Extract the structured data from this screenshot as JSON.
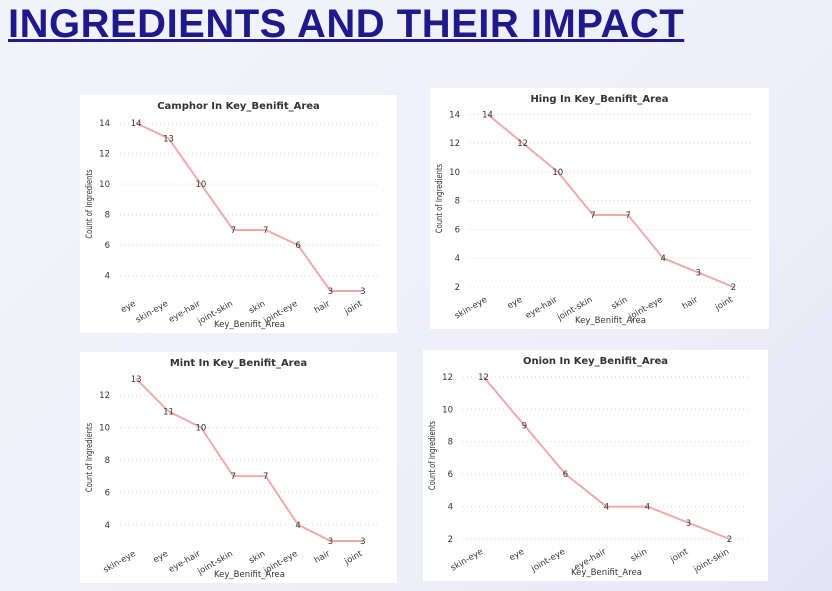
{
  "header": {
    "title": "INGREDIENTS AND THEIR IMPACT"
  },
  "chart_data": [
    {
      "type": "line",
      "title": "Camphor In Key_Benifit_Area",
      "x_label": "Key_Benifit_Area",
      "y_label": "Count of Ingredients",
      "categories": [
        "eye",
        "skin-eye",
        "eye-hair",
        "joint-skin",
        "skin",
        "joint-eye",
        "hair",
        "joint"
      ],
      "values": [
        14,
        13,
        10,
        7,
        7,
        6,
        3,
        3
      ],
      "color": "#f0aaaa",
      "ylim": [
        3,
        14.4
      ],
      "yticks": [
        4,
        6,
        8,
        10,
        12,
        14
      ],
      "grid": true
    },
    {
      "type": "line",
      "title": "Hing In Key_Benifit_Area",
      "x_label": "Key_Benifit_Area",
      "y_label": "Count of Ingredients",
      "categories": [
        "skin-eye",
        "eye",
        "eye-hair",
        "joint-skin",
        "skin",
        "joint-eye",
        "hair",
        "joint"
      ],
      "values": [
        14,
        12,
        10,
        7,
        7,
        4,
        3,
        2
      ],
      "color": "#f0aaaa",
      "ylim": [
        2,
        14.3
      ],
      "yticks": [
        2,
        4,
        6,
        8,
        10,
        12,
        14
      ],
      "grid": true
    },
    {
      "type": "line",
      "title": "Mint In Key_Benifit_Area",
      "x_label": "Key_Benifit_Area",
      "y_label": "Count of Ingredients",
      "categories": [
        "skin-eye",
        "eye",
        "eye-hair",
        "joint-skin",
        "skin",
        "joint-eye",
        "hair",
        "joint"
      ],
      "values": [
        13,
        11,
        10,
        7,
        7,
        4,
        3,
        3
      ],
      "color": "#f0aaaa",
      "ylim": [
        3,
        13.3
      ],
      "yticks": [
        4,
        6,
        8,
        10,
        12
      ],
      "grid": true
    },
    {
      "type": "line",
      "title": "Onion In Key_Benifit_Area",
      "x_label": "Key_Benifit_Area",
      "y_label": "Count of Ingredients",
      "categories": [
        "skin-eye",
        "eye",
        "joint-eye",
        "eye-hair",
        "skin",
        "joint",
        "joint-skin"
      ],
      "values": [
        12,
        9,
        6,
        4,
        4,
        3,
        2
      ],
      "color": "#f0aaaa",
      "ylim": [
        2,
        12.3
      ],
      "yticks": [
        2,
        4,
        6,
        8,
        10,
        12
      ],
      "grid": true
    }
  ]
}
